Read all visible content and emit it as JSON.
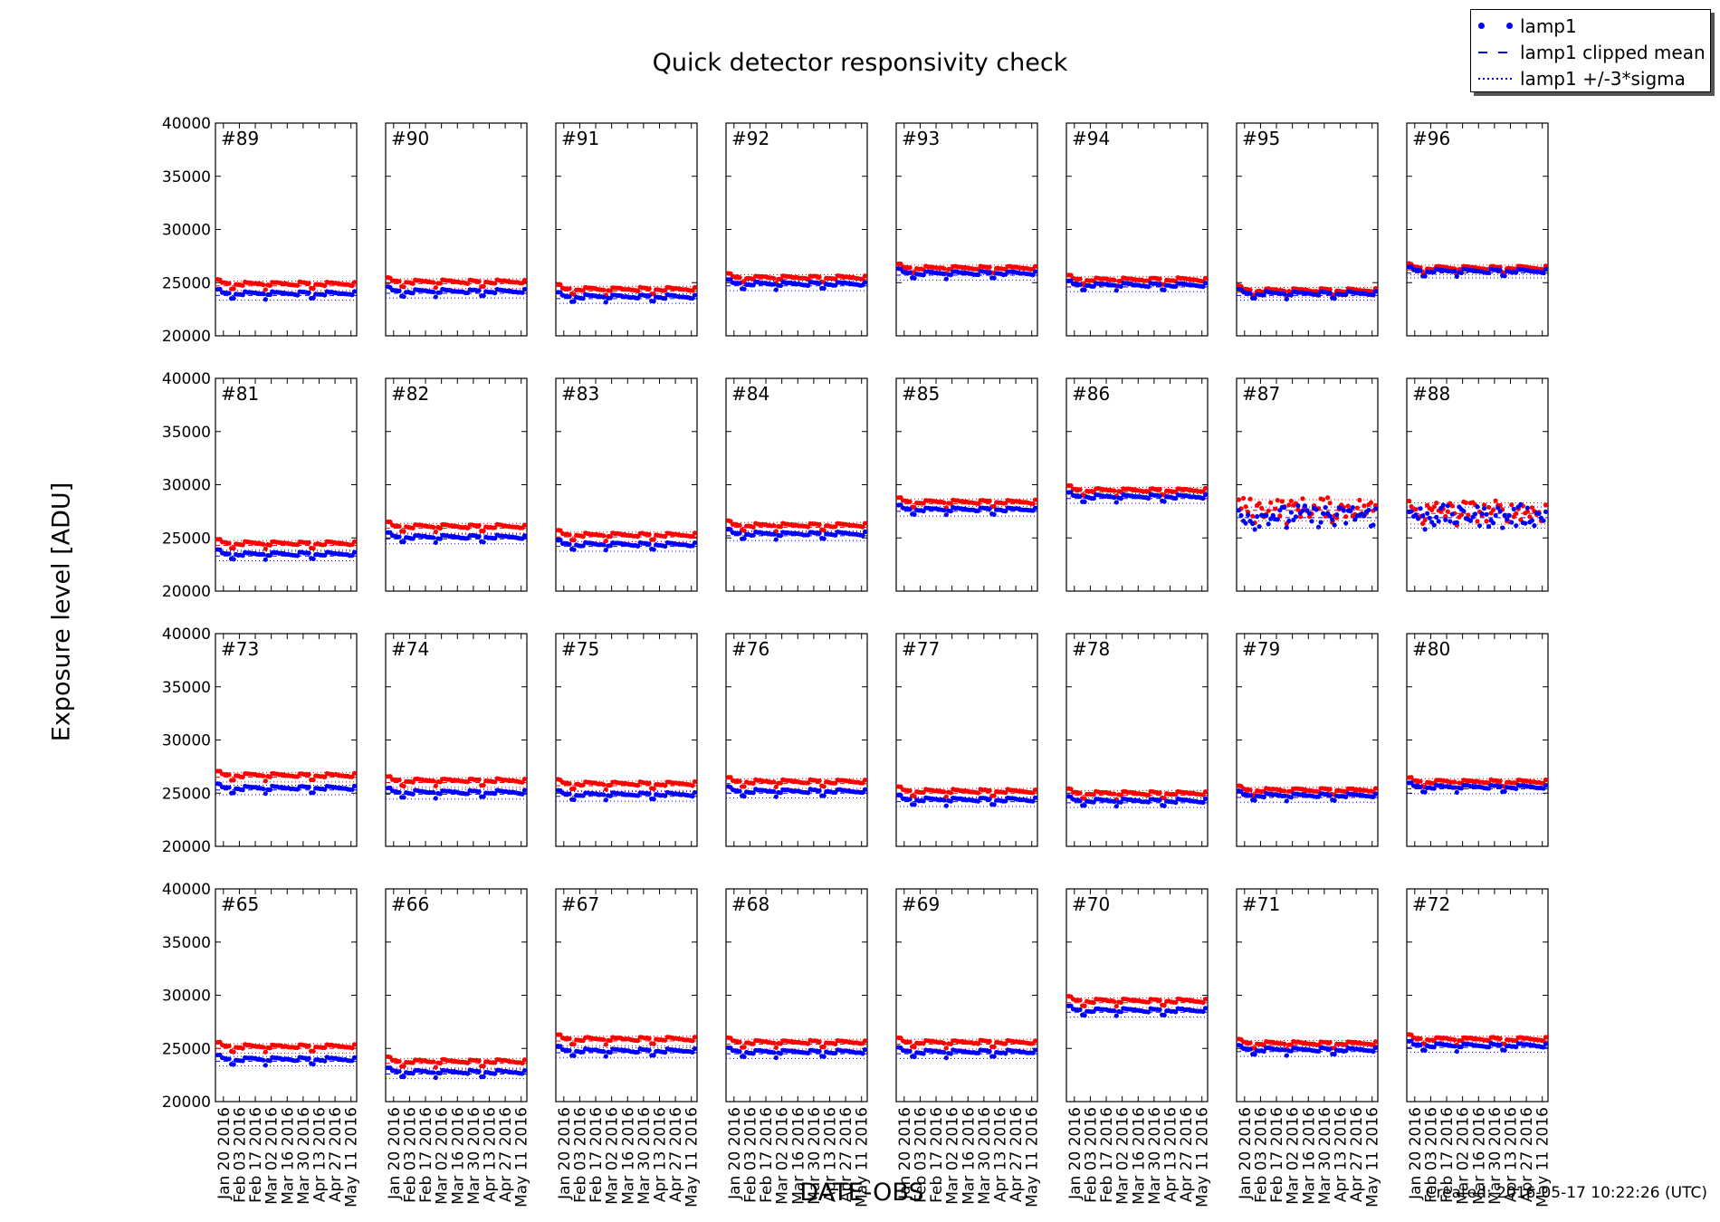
{
  "title": "Quick detector responsivity check",
  "ylabel": "Exposure level [ADU]",
  "xlabel": "DATE-OBS",
  "created": "Created: 2016-05-17 10:22:26 (UTC)",
  "legend": {
    "placement": "top-right",
    "entries": [
      {
        "label": "lamp1",
        "style": "dots"
      },
      {
        "label": "lamp1 clipped mean",
        "style": "dashed"
      },
      {
        "label": "lamp1 +/-3*sigma",
        "style": "dotted"
      }
    ]
  },
  "colors": {
    "lamp1": "#0000ff",
    "second_series": "#ff0000",
    "axes": "#000000"
  },
  "chart_data": {
    "type": "scatter",
    "grid": false,
    "layout": {
      "rows": 4,
      "cols": 8
    },
    "ylim": [
      20000,
      40000
    ],
    "yticks": [
      "20000",
      "25000",
      "30000",
      "35000",
      "40000"
    ],
    "xlim": [
      "2016-01-13",
      "2016-05-16"
    ],
    "xticks": [
      "Jan 20 2016",
      "Feb 03 2016",
      "Feb 17 2016",
      "Mar 02 2016",
      "Mar 16 2016",
      "Mar 30 2016",
      "Apr 13 2016",
      "Apr 27 2016",
      "May 11 2016"
    ],
    "xtick_dates": [
      "2016-01-20",
      "2016-02-03",
      "2016-02-17",
      "2016-03-02",
      "2016-03-16",
      "2016-03-30",
      "2016-04-13",
      "2016-04-27",
      "2016-05-11"
    ],
    "panels": [
      {
        "label": "#89",
        "blue": 23800,
        "red": 24700
      },
      {
        "label": "#90",
        "blue": 24000,
        "red": 24900
      },
      {
        "label": "#91",
        "blue": 23500,
        "red": 24200
      },
      {
        "label": "#92",
        "blue": 24700,
        "red": 25300
      },
      {
        "label": "#93",
        "blue": 25700,
        "red": 26200
      },
      {
        "label": "#94",
        "blue": 24600,
        "red": 25100
      },
      {
        "label": "#95",
        "blue": 23800,
        "red": 24100
      },
      {
        "label": "#96",
        "blue": 25900,
        "red": 26200
      },
      {
        "label": "#81",
        "blue": 23300,
        "red": 24300
      },
      {
        "label": "#82",
        "blue": 24900,
        "red": 25900
      },
      {
        "label": "#83",
        "blue": 24200,
        "red": 25100
      },
      {
        "label": "#84",
        "blue": 25200,
        "red": 26000
      },
      {
        "label": "#85",
        "blue": 27500,
        "red": 28200
      },
      {
        "label": "#86",
        "blue": 28700,
        "red": 29300
      },
      {
        "label": "#87",
        "blue": 26900,
        "red": 27600,
        "noisy": true
      },
      {
        "label": "#88",
        "blue": 26900,
        "red": 27300,
        "noisy": true
      },
      {
        "label": "#73",
        "blue": 25300,
        "red": 26500
      },
      {
        "label": "#74",
        "blue": 24900,
        "red": 26000
      },
      {
        "label": "#75",
        "blue": 24700,
        "red": 25700
      },
      {
        "label": "#76",
        "blue": 25000,
        "red": 25900
      },
      {
        "label": "#77",
        "blue": 24200,
        "red": 25000
      },
      {
        "label": "#78",
        "blue": 24100,
        "red": 24800
      },
      {
        "label": "#79",
        "blue": 24600,
        "red": 25100
      },
      {
        "label": "#80",
        "blue": 25400,
        "red": 25900
      },
      {
        "label": "#65",
        "blue": 23800,
        "red": 25000
      },
      {
        "label": "#66",
        "blue": 22600,
        "red": 23600
      },
      {
        "label": "#67",
        "blue": 24600,
        "red": 25700
      },
      {
        "label": "#68",
        "blue": 24500,
        "red": 25400
      },
      {
        "label": "#69",
        "blue": 24500,
        "red": 25400
      },
      {
        "label": "#70",
        "blue": 28400,
        "red": 29300
      },
      {
        "label": "#71",
        "blue": 24700,
        "red": 25300
      },
      {
        "label": "#72",
        "blue": 25100,
        "red": 25700
      }
    ]
  }
}
